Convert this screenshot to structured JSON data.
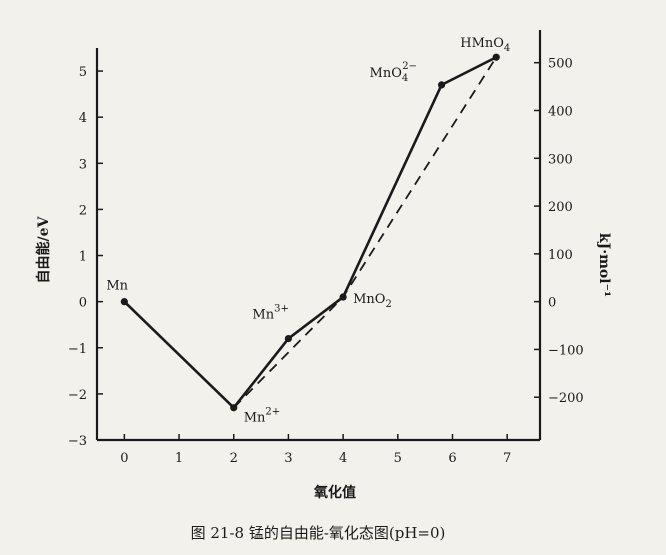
{
  "chart_data": {
    "type": "line",
    "title": "",
    "caption": "图 21-8  锰的自由能-氧化态图(pH=0)",
    "xlabel": "氧化值",
    "ylabel_left": "自由能/eV",
    "ylabel_right": "kJ·mol⁻¹",
    "x_ticks": [
      0,
      1,
      2,
      3,
      4,
      5,
      6,
      7
    ],
    "left_ticks": [
      5,
      4,
      3,
      2,
      1,
      0,
      -1,
      -2,
      -3
    ],
    "right_ticks": [
      500,
      400,
      300,
      200,
      100,
      0,
      -100,
      -200
    ],
    "xlim": [
      -0.5,
      7.6
    ],
    "ylim": [
      -3,
      5.5
    ],
    "series": [
      {
        "style": "solid",
        "x": [
          0,
          2,
          3,
          4,
          5.8,
          6.8
        ],
        "y": [
          0,
          -2.3,
          -0.8,
          0.1,
          4.7,
          5.3
        ]
      },
      {
        "style": "dashed",
        "x": [
          2,
          4,
          6.8
        ],
        "y": [
          -2.3,
          0.1,
          5.3
        ]
      },
      {
        "style": "dashed",
        "x": [
          5.8,
          6.8
        ],
        "y": [
          4.7,
          5.3
        ]
      }
    ],
    "point_labels": [
      {
        "x": 0,
        "y": 0,
        "base": "Mn",
        "sup": "",
        "sub": ""
      },
      {
        "x": 2,
        "y": -2.3,
        "base": "Mn",
        "sup": "2+",
        "sub": ""
      },
      {
        "x": 3,
        "y": -0.8,
        "base": "Mn",
        "sup": "3+",
        "sub": ""
      },
      {
        "x": 4,
        "y": 0.1,
        "base": "MnO",
        "sup": "",
        "sub": "2"
      },
      {
        "x": 5.8,
        "y": 4.7,
        "base": "MnO",
        "sup": "2−",
        "sub": "4"
      },
      {
        "x": 6.8,
        "y": 5.3,
        "base": "HMnO",
        "sup": "",
        "sub": "4"
      }
    ]
  }
}
